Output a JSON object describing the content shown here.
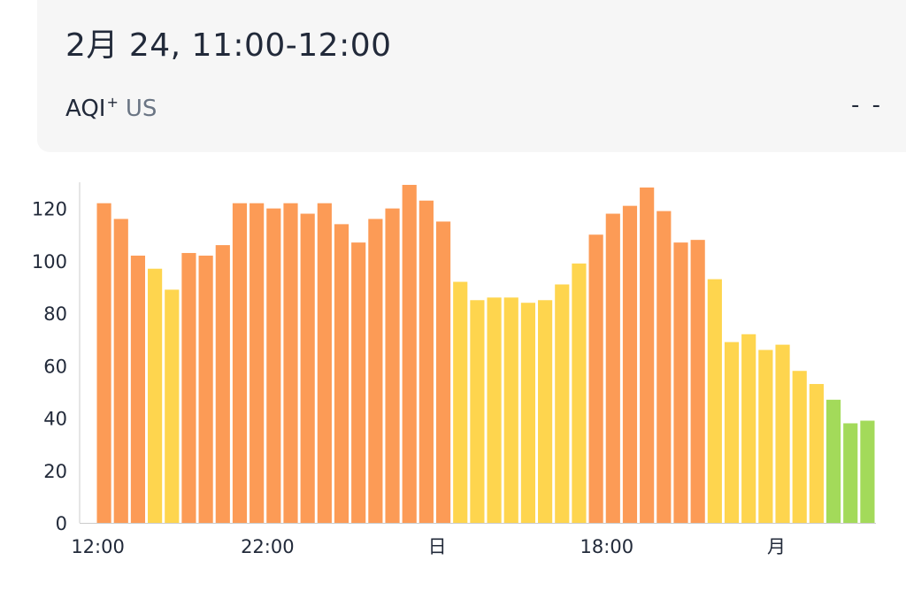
{
  "tooltip": {
    "time": "2月 24, 11:00-12:00",
    "metric": "AQI",
    "metric_sup": "+",
    "unit": "US",
    "value": "- -"
  },
  "colors": {
    "unhealthy": "#fc9b56",
    "moderate": "#fed54e",
    "good": "#a3da5a",
    "axis": "#cccccc",
    "text": "#222a3a"
  },
  "chart_data": {
    "type": "bar",
    "ylim": [
      0,
      130
    ],
    "yticks": [
      0,
      20,
      40,
      60,
      80,
      100,
      120
    ],
    "x_labels": [
      {
        "index": 0,
        "label": "12:00"
      },
      {
        "index": 10,
        "label": "22:00"
      },
      {
        "index": 20,
        "label": "日"
      },
      {
        "index": 30,
        "label": "18:00"
      },
      {
        "index": 40,
        "label": "月"
      }
    ],
    "values": [
      122,
      116,
      102,
      97,
      89,
      103,
      102,
      106,
      122,
      122,
      120,
      122,
      118,
      122,
      114,
      107,
      116,
      120,
      129,
      123,
      115,
      92,
      85,
      86,
      86,
      84,
      85,
      91,
      99,
      110,
      118,
      121,
      128,
      119,
      107,
      108,
      93,
      69,
      72,
      66,
      68,
      58,
      53,
      47,
      38,
      39
    ]
  }
}
